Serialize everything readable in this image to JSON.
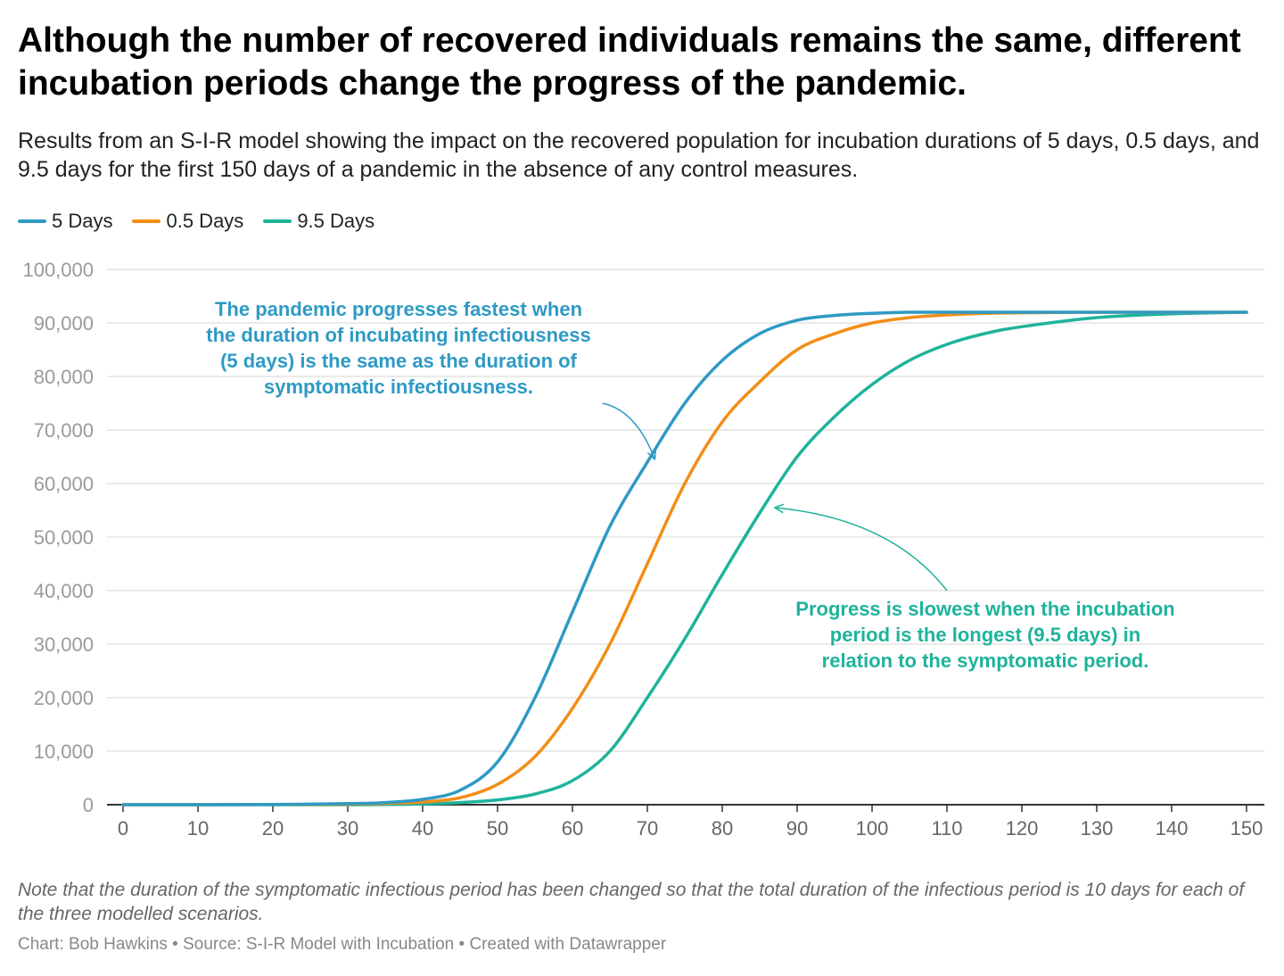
{
  "title": "Although the number of recovered individuals remains the same, different incubation periods change the progress of the pandemic.",
  "subtitle": "Results from an S-I-R model showing the impact on the recovered population for incubation durations of 5 days, 0.5 days, and 9.5 days for the first 150 days of a pandemic in the absence of any control measures.",
  "note": "Note that the duration of the symptomatic infectious period has been changed so that the total duration of the infectious period is 10 days for each of the three modelled scenarios.",
  "footer": "Chart: Bob Hawkins • Source: S-I-R Model with Incubation • Created with Datawrapper",
  "colors": {
    "five": "#2e9ac4",
    "half": "#f28e18",
    "nine": "#1fb39b"
  },
  "chart_data": {
    "type": "line",
    "title": "Although the number of recovered individuals remains the same, different incubation periods change the progress of the pandemic.",
    "xlabel": "",
    "ylabel": "",
    "xlim": [
      0,
      150
    ],
    "ylim": [
      0,
      100000
    ],
    "x_ticks": [
      0,
      10,
      20,
      30,
      40,
      50,
      60,
      70,
      80,
      90,
      100,
      110,
      120,
      130,
      140,
      150
    ],
    "y_ticks": [
      0,
      10000,
      20000,
      30000,
      40000,
      50000,
      60000,
      70000,
      80000,
      90000,
      100000
    ],
    "y_tick_labels": [
      "0",
      "10,000",
      "20,000",
      "30,000",
      "40,000",
      "50,000",
      "60,000",
      "70,000",
      "80,000",
      "90,000",
      "100,000"
    ],
    "grid": true,
    "legend_position": "top-left",
    "x": [
      0,
      10,
      20,
      30,
      35,
      40,
      45,
      50,
      55,
      60,
      65,
      70,
      75,
      80,
      85,
      90,
      95,
      100,
      105,
      110,
      115,
      120,
      130,
      140,
      150
    ],
    "series": [
      {
        "name": "5 Days",
        "color": "#2e9ac4",
        "values": [
          0,
          0,
          50,
          200,
          400,
          1000,
          2700,
          8000,
          20000,
          36000,
          52000,
          64000,
          75000,
          83000,
          88000,
          90500,
          91400,
          91800,
          92000,
          92000,
          92000,
          92000,
          92000,
          92000,
          92000
        ]
      },
      {
        "name": "0.5 Days",
        "color": "#f28e18",
        "values": [
          0,
          0,
          30,
          100,
          250,
          500,
          1300,
          3800,
          9000,
          18000,
          30000,
          45000,
          60000,
          71500,
          79000,
          85000,
          88000,
          90000,
          91000,
          91500,
          91800,
          91900,
          92000,
          92000,
          92000
        ]
      },
      {
        "name": "9.5 Days",
        "color": "#1fb39b",
        "values": [
          0,
          0,
          0,
          0,
          50,
          150,
          400,
          900,
          2000,
          4500,
          10000,
          20000,
          31000,
          43000,
          54500,
          65000,
          72500,
          78500,
          83000,
          86000,
          88000,
          89300,
          91000,
          91700,
          92000
        ]
      }
    ],
    "annotations": [
      {
        "lines": [
          "The pandemic progresses fastest when",
          "the duration of incubating infectiousness",
          "(5 days) is the same as the duration of",
          "symptomatic infectiousness."
        ],
        "color": "#2e9ac4",
        "arrow_to": [
          71,
          64500
        ],
        "arrow_from": [
          64,
          75000
        ]
      },
      {
        "lines": [
          "Progress is slowest when the incubation",
          "period is the longest (9.5 days) in",
          "relation to the symptomatic period."
        ],
        "color": "#1fb39b",
        "arrow_to": [
          87,
          55500
        ],
        "arrow_from": [
          110,
          40000
        ]
      }
    ]
  }
}
